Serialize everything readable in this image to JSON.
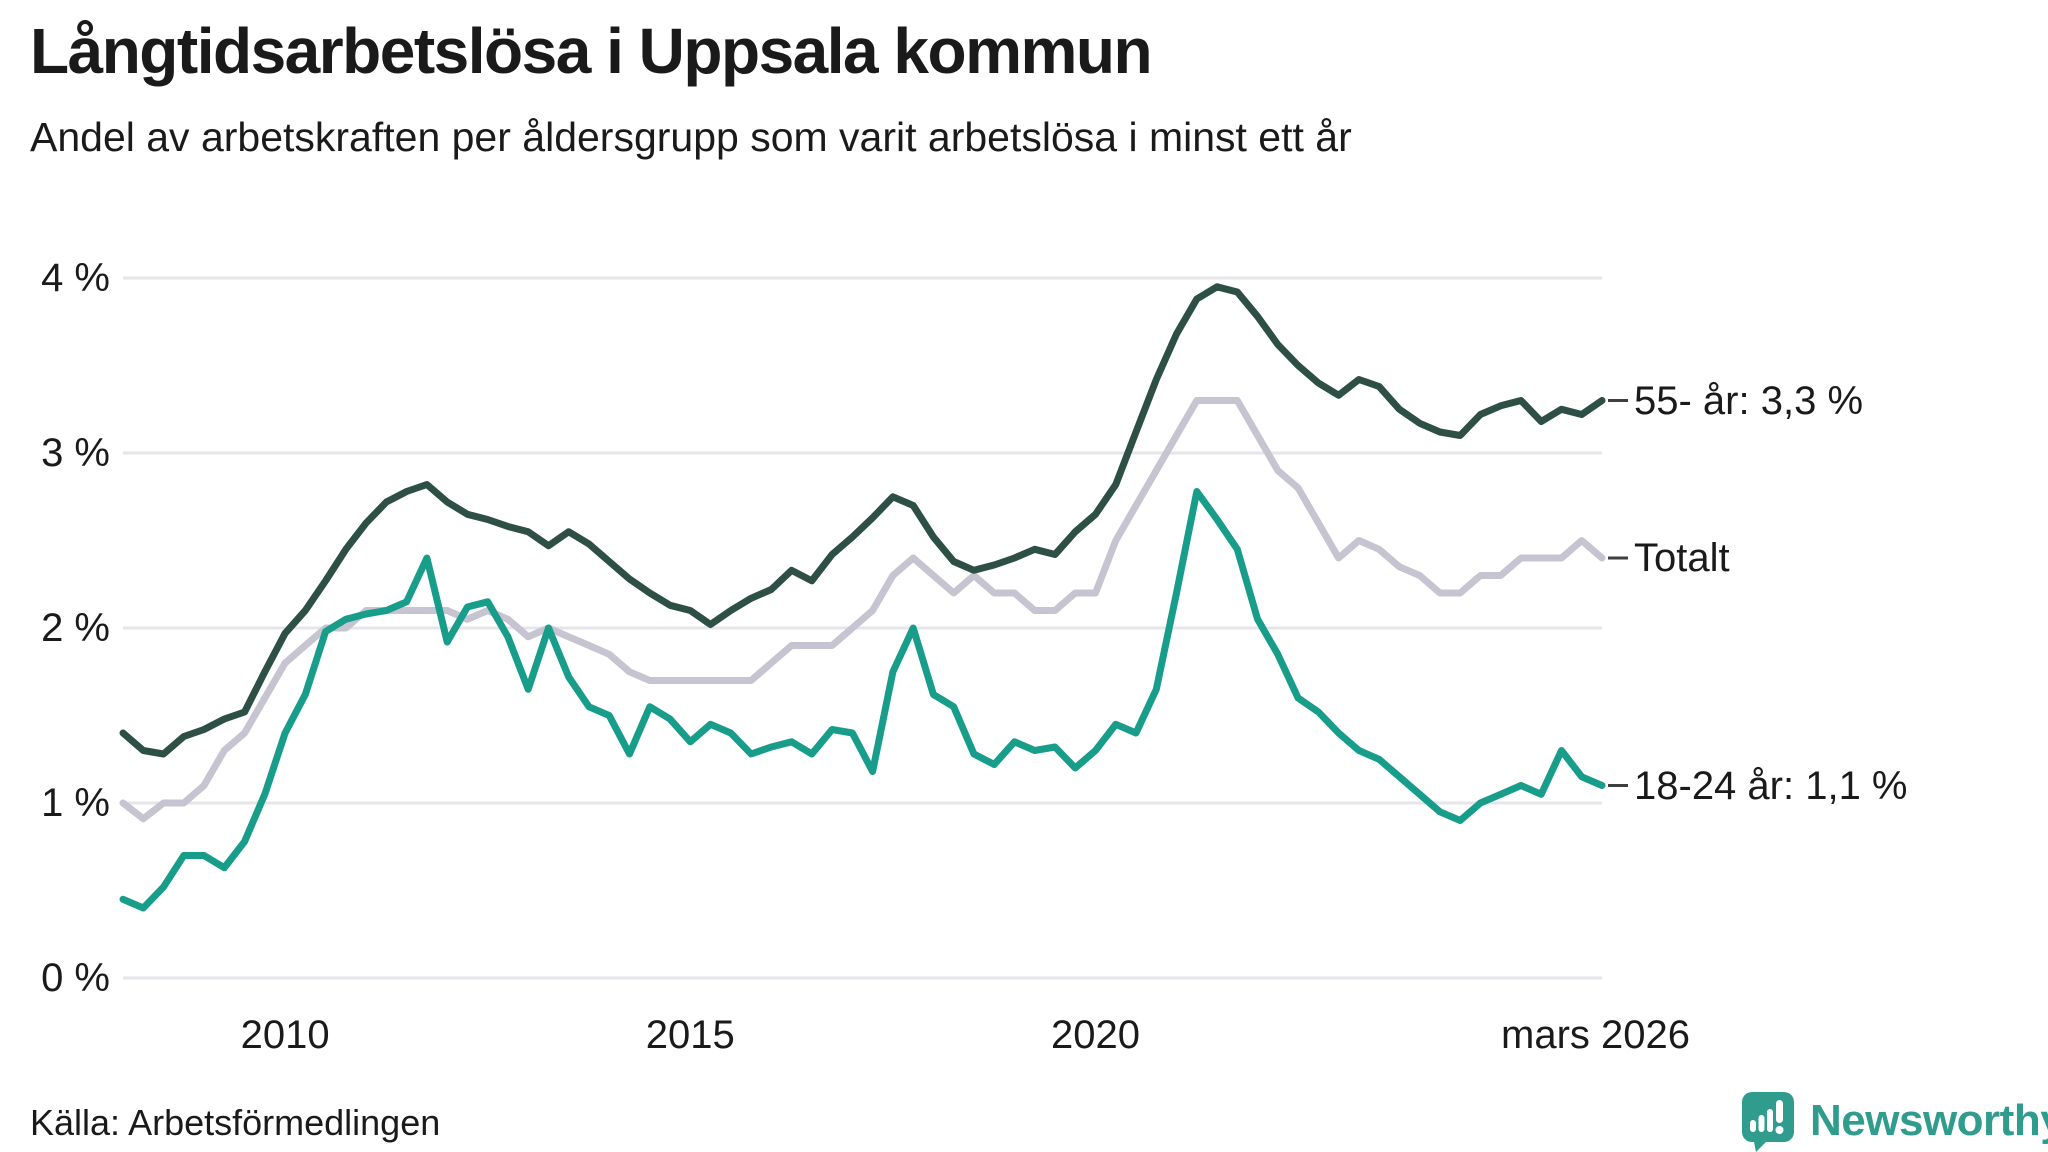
{
  "chart_data": {
    "type": "line",
    "title": "Långtidsarbetslösa i Uppsala kommun",
    "subtitle": "Andel av arbetskraften per åldersgrupp som varit arbetslösa i minst ett år",
    "xlabel": "",
    "ylabel": "",
    "ylim": [
      0,
      4
    ],
    "xlim": [
      2008,
      2026.25
    ],
    "grid": "horizontal",
    "legend_position": "line-end-labels-right",
    "x_step_years": 0.25,
    "x": [
      2008,
      2008.25,
      2008.5,
      2008.75,
      2009,
      2009.25,
      2009.5,
      2009.75,
      2010,
      2010.25,
      2010.5,
      2010.75,
      2011,
      2011.25,
      2011.5,
      2011.75,
      2012,
      2012.25,
      2012.5,
      2012.75,
      2013,
      2013.25,
      2013.5,
      2013.75,
      2014,
      2014.25,
      2014.5,
      2014.75,
      2015,
      2015.25,
      2015.5,
      2015.75,
      2016,
      2016.25,
      2016.5,
      2016.75,
      2017,
      2017.25,
      2017.5,
      2017.75,
      2018,
      2018.25,
      2018.5,
      2018.75,
      2019,
      2019.25,
      2019.5,
      2019.75,
      2020,
      2020.25,
      2020.5,
      2020.75,
      2021,
      2021.25,
      2021.5,
      2021.75,
      2022,
      2022.25,
      2022.5,
      2022.75,
      2023,
      2023.25,
      2023.5,
      2023.75,
      2024,
      2024.25,
      2024.5,
      2024.75,
      2025,
      2025.25,
      2025.5,
      2025.75,
      2026,
      2026.25
    ],
    "series": [
      {
        "name": "55- år",
        "end_label": "55- år: 3,3 %",
        "end_value_text": "3,3 %",
        "color": "#2d4f46",
        "values": [
          1.4,
          1.3,
          1.28,
          1.38,
          1.42,
          1.48,
          1.52,
          1.75,
          1.97,
          2.1,
          2.27,
          2.45,
          2.6,
          2.72,
          2.78,
          2.82,
          2.72,
          2.65,
          2.62,
          2.58,
          2.55,
          2.47,
          2.55,
          2.48,
          2.38,
          2.28,
          2.2,
          2.13,
          2.1,
          2.02,
          2.1,
          2.17,
          2.22,
          2.33,
          2.27,
          2.42,
          2.52,
          2.63,
          2.75,
          2.7,
          2.52,
          2.38,
          2.33,
          2.36,
          2.4,
          2.45,
          2.42,
          2.55,
          2.65,
          2.82,
          3.12,
          3.42,
          3.68,
          3.88,
          3.95,
          3.92,
          3.78,
          3.62,
          3.5,
          3.4,
          3.33,
          3.42,
          3.38,
          3.25,
          3.17,
          3.12,
          3.1,
          3.22,
          3.27,
          3.3,
          3.18,
          3.25,
          3.22,
          3.3
        ]
      },
      {
        "name": "Totalt",
        "end_label": "Totalt",
        "end_value_text": "",
        "color": "#c7c4d2",
        "values": [
          1.0,
          0.91,
          1.0,
          1.0,
          1.1,
          1.3,
          1.4,
          1.6,
          1.8,
          1.9,
          2.0,
          2.0,
          2.1,
          2.1,
          2.1,
          2.1,
          2.1,
          2.05,
          2.1,
          2.05,
          1.95,
          2.0,
          1.95,
          1.9,
          1.85,
          1.75,
          1.7,
          1.7,
          1.7,
          1.7,
          1.7,
          1.7,
          1.8,
          1.9,
          1.9,
          1.9,
          2.0,
          2.1,
          2.3,
          2.4,
          2.3,
          2.2,
          2.3,
          2.2,
          2.2,
          2.1,
          2.1,
          2.2,
          2.2,
          2.5,
          2.7,
          2.9,
          3.1,
          3.3,
          3.3,
          3.3,
          3.1,
          2.9,
          2.8,
          2.6,
          2.4,
          2.5,
          2.45,
          2.35,
          2.3,
          2.2,
          2.2,
          2.3,
          2.3,
          2.4,
          2.4,
          2.4,
          2.5,
          2.4
        ]
      },
      {
        "name": "18-24 år",
        "end_label": "18-24 år: 1,1 %",
        "end_value_text": "1,1 %",
        "color": "#189d8a",
        "values": [
          0.45,
          0.4,
          0.52,
          0.7,
          0.7,
          0.63,
          0.78,
          1.05,
          1.4,
          1.62,
          1.98,
          2.05,
          2.08,
          2.1,
          2.15,
          2.4,
          1.92,
          2.12,
          2.15,
          1.95,
          1.65,
          2.0,
          1.72,
          1.55,
          1.5,
          1.28,
          1.55,
          1.48,
          1.35,
          1.45,
          1.4,
          1.28,
          1.32,
          1.35,
          1.28,
          1.42,
          1.4,
          1.18,
          1.75,
          2.0,
          1.62,
          1.55,
          1.28,
          1.22,
          1.35,
          1.3,
          1.32,
          1.2,
          1.3,
          1.45,
          1.4,
          1.65,
          2.2,
          2.78,
          2.62,
          2.45,
          2.05,
          1.85,
          1.6,
          1.52,
          1.4,
          1.3,
          1.25,
          1.15,
          1.05,
          0.95,
          0.9,
          1.0,
          1.05,
          1.1,
          1.05,
          1.3,
          1.15,
          1.1
        ]
      }
    ],
    "y_ticks": [
      {
        "label": "4 %",
        "value": 4
      },
      {
        "label": "3 %",
        "value": 3
      },
      {
        "label": "2 %",
        "value": 2
      },
      {
        "label": "1 %",
        "value": 1
      },
      {
        "label": "0 %",
        "value": 0
      }
    ],
    "x_ticks": [
      {
        "label": "2010",
        "year": 2010
      },
      {
        "label": "2015",
        "year": 2015
      },
      {
        "label": "2020",
        "year": 2020
      },
      {
        "label": "mars 2026",
        "year": 2026.17
      }
    ]
  },
  "footer": {
    "source": "Källa: Arbetsförmedlingen",
    "brand": "Newsworthy"
  },
  "colors": {
    "background": "#ffffff",
    "text": "#1a1a1a",
    "gridline": "#e6e5ea",
    "tick_dash": "#3f3f3f",
    "series_55": "#2d4f46",
    "series_total": "#c7c4d2",
    "series_1824": "#189d8a",
    "brand_teal": "#2f9c8e"
  }
}
